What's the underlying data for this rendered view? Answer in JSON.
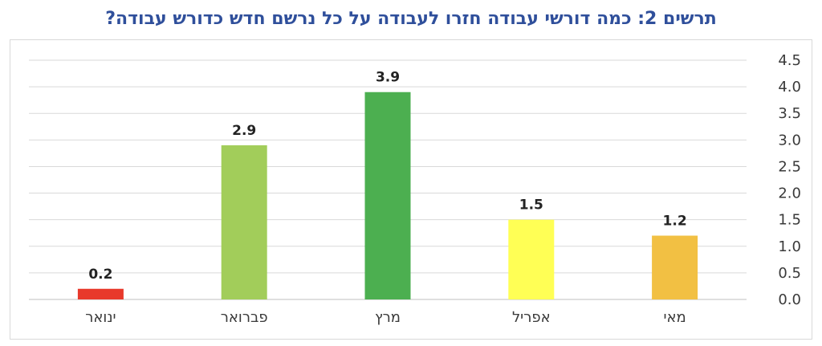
{
  "page_title": "תרשים 2: כמה דורשי עבודה חזרו לעבודה על כל נרשם חדש כדורש עבודה?",
  "chart_data": {
    "type": "bar",
    "title": "תרשים 2: כמה דורשי עבודה חזרו לעבודה על כל נרשם חדש כדורש עבודה?",
    "categories": [
      "מאי",
      "אפריל",
      "מרץ",
      "פברואר",
      "ינואר"
    ],
    "values": [
      1.2,
      1.5,
      3.9,
      2.9,
      0.2
    ],
    "data_labels": [
      "1.2",
      "1.5",
      "3.9",
      "2.9",
      "0.2"
    ],
    "colors": [
      "#f2c043",
      "#ffff55",
      "#4caf50",
      "#a2cd5a",
      "#e8392b"
    ],
    "ylim": [
      0,
      4.5
    ],
    "yticks": [
      "0.0",
      "0.5",
      "1.0",
      "1.5",
      "2.0",
      "2.5",
      "3.0",
      "3.5",
      "4.0",
      "4.5"
    ],
    "y_axis_side": "right",
    "category_order": "right-to-left",
    "grid": true,
    "legend": "none"
  }
}
